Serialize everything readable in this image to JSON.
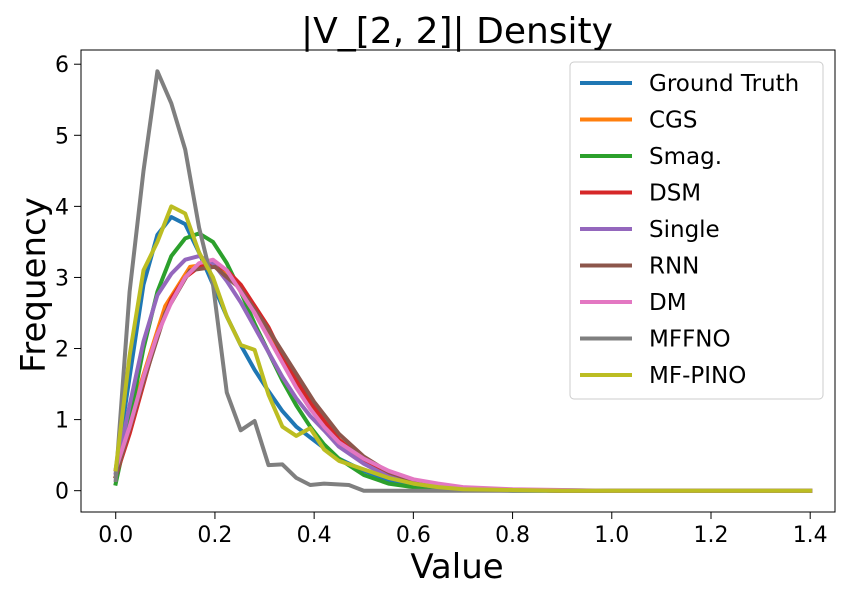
{
  "chart_data": {
    "type": "line",
    "title": "|V_[2, 2]| Density",
    "xlabel": "Value",
    "ylabel": "Frequency",
    "xlim": [
      -0.07,
      1.45
    ],
    "ylim": [
      -0.3,
      6.2
    ],
    "xticks": [
      0.0,
      0.2,
      0.4,
      0.6,
      0.8,
      1.0,
      1.2,
      1.4
    ],
    "xtick_labels": [
      "0.0",
      "0.2",
      "0.4",
      "0.6",
      "0.8",
      "1.0",
      "1.2",
      "1.4"
    ],
    "yticks": [
      0,
      1,
      2,
      3,
      4,
      5,
      6
    ],
    "ytick_labels": [
      "0",
      "1",
      "2",
      "3",
      "4",
      "5",
      "6"
    ],
    "legend_position": "top-right",
    "series": [
      {
        "name": "Ground Truth",
        "color": "#1f77b4",
        "x": [
          0,
          0.028,
          0.056,
          0.084,
          0.112,
          0.14,
          0.168,
          0.196,
          0.224,
          0.252,
          0.28,
          0.308,
          0.336,
          0.364,
          0.392,
          0.42,
          0.45,
          0.5,
          0.55,
          0.6,
          0.65,
          0.7,
          0.8,
          0.9,
          1.0,
          1.2,
          1.4
        ],
        "y": [
          0.3,
          1.6,
          2.9,
          3.6,
          3.85,
          3.75,
          3.35,
          2.9,
          2.45,
          2.05,
          1.7,
          1.4,
          1.12,
          0.9,
          0.75,
          0.6,
          0.45,
          0.28,
          0.15,
          0.08,
          0.04,
          0.02,
          0.01,
          0.005,
          0.0,
          0.0,
          0.0
        ]
      },
      {
        "name": "CGS",
        "color": "#ff7f0e",
        "x": [
          0,
          0.05,
          0.1,
          0.15,
          0.2,
          0.25,
          0.3,
          0.35,
          0.4,
          0.45,
          0.5,
          0.55,
          0.6,
          0.65,
          0.7,
          0.8,
          0.9,
          1.0,
          1.2,
          1.4
        ],
        "y": [
          0.2,
          1.5,
          2.6,
          3.15,
          3.2,
          2.85,
          2.3,
          1.7,
          1.15,
          0.72,
          0.42,
          0.24,
          0.13,
          0.07,
          0.04,
          0.01,
          0.0,
          0.0,
          0.0,
          0.0
        ]
      },
      {
        "name": "Smag.",
        "color": "#2ca02c",
        "x": [
          0,
          0.028,
          0.056,
          0.084,
          0.112,
          0.14,
          0.168,
          0.196,
          0.224,
          0.252,
          0.28,
          0.308,
          0.336,
          0.364,
          0.392,
          0.42,
          0.45,
          0.5,
          0.55,
          0.6,
          0.65,
          0.7,
          0.8,
          0.9,
          1.0,
          1.2,
          1.4
        ],
        "y": [
          0.1,
          1.0,
          2.0,
          2.8,
          3.3,
          3.55,
          3.62,
          3.5,
          3.2,
          2.8,
          2.35,
          1.95,
          1.55,
          1.2,
          0.9,
          0.65,
          0.45,
          0.22,
          0.1,
          0.05,
          0.02,
          0.01,
          0.0,
          0.0,
          0.0,
          0.0,
          0.0
        ]
      },
      {
        "name": "DSM",
        "color": "#d62728",
        "x": [
          0,
          0.028,
          0.056,
          0.084,
          0.112,
          0.14,
          0.168,
          0.196,
          0.224,
          0.252,
          0.28,
          0.308,
          0.336,
          0.364,
          0.392,
          0.42,
          0.45,
          0.5,
          0.55,
          0.6,
          0.65,
          0.7,
          0.8,
          0.9,
          1.0,
          1.2,
          1.4
        ],
        "y": [
          0.2,
          0.8,
          1.5,
          2.2,
          2.7,
          3.0,
          3.15,
          3.2,
          3.1,
          2.9,
          2.6,
          2.3,
          1.9,
          1.55,
          1.25,
          0.98,
          0.72,
          0.42,
          0.22,
          0.11,
          0.06,
          0.03,
          0.01,
          0.0,
          0.0,
          0.0,
          0.0
        ]
      },
      {
        "name": "Single",
        "color": "#9467bd",
        "x": [
          0,
          0.028,
          0.056,
          0.084,
          0.112,
          0.14,
          0.168,
          0.196,
          0.224,
          0.252,
          0.28,
          0.308,
          0.336,
          0.364,
          0.392,
          0.42,
          0.45,
          0.5,
          0.55,
          0.6,
          0.65,
          0.7,
          0.8,
          0.9,
          1.0,
          1.2,
          1.4
        ],
        "y": [
          0.25,
          1.2,
          2.1,
          2.75,
          3.05,
          3.25,
          3.3,
          3.2,
          2.95,
          2.65,
          2.3,
          1.95,
          1.6,
          1.3,
          1.05,
          0.85,
          0.62,
          0.38,
          0.2,
          0.1,
          0.05,
          0.025,
          0.01,
          0.0,
          0.0,
          0.0,
          0.0
        ]
      },
      {
        "name": "RNN",
        "color": "#8c564b",
        "x": [
          0,
          0.05,
          0.1,
          0.15,
          0.2,
          0.25,
          0.3,
          0.35,
          0.4,
          0.45,
          0.5,
          0.55,
          0.6,
          0.65,
          0.7,
          0.8,
          0.9,
          1.0,
          1.2,
          1.4
        ],
        "y": [
          0.2,
          1.4,
          2.5,
          3.1,
          3.15,
          2.85,
          2.35,
          1.8,
          1.25,
          0.8,
          0.48,
          0.26,
          0.14,
          0.07,
          0.035,
          0.01,
          0.0,
          0.0,
          0.0,
          0.0
        ]
      },
      {
        "name": "DM",
        "color": "#e377c2",
        "x": [
          0,
          0.028,
          0.056,
          0.084,
          0.112,
          0.14,
          0.168,
          0.196,
          0.224,
          0.252,
          0.28,
          0.308,
          0.336,
          0.364,
          0.392,
          0.42,
          0.45,
          0.5,
          0.55,
          0.6,
          0.65,
          0.7,
          0.8,
          0.9,
          1.0,
          1.2,
          1.4
        ],
        "y": [
          0.3,
          0.9,
          1.6,
          2.2,
          2.65,
          3.0,
          3.2,
          3.25,
          3.1,
          2.8,
          2.5,
          2.15,
          1.8,
          1.45,
          1.15,
          0.9,
          0.68,
          0.45,
          0.28,
          0.16,
          0.1,
          0.05,
          0.02,
          0.01,
          0.0,
          0.0,
          0.0
        ]
      },
      {
        "name": "MFFNO",
        "color": "#7f7f7f",
        "x": [
          0,
          0.028,
          0.056,
          0.084,
          0.112,
          0.14,
          0.168,
          0.196,
          0.224,
          0.252,
          0.28,
          0.308,
          0.336,
          0.364,
          0.392,
          0.42,
          0.47,
          0.5,
          0.55,
          0.6,
          0.7,
          0.8,
          1.0,
          1.2,
          1.4
        ],
        "y": [
          0.15,
          2.8,
          4.5,
          5.9,
          5.45,
          4.8,
          3.7,
          2.9,
          1.38,
          0.85,
          0.98,
          0.36,
          0.37,
          0.18,
          0.08,
          0.1,
          0.08,
          0.0,
          0.0,
          0.0,
          0.0,
          0.0,
          0.0,
          0.0,
          0.0
        ]
      },
      {
        "name": "MF-PINO",
        "color": "#bcbd22",
        "x": [
          0,
          0.028,
          0.056,
          0.084,
          0.112,
          0.14,
          0.168,
          0.196,
          0.224,
          0.252,
          0.28,
          0.308,
          0.336,
          0.364,
          0.392,
          0.42,
          0.45,
          0.5,
          0.55,
          0.6,
          0.65,
          0.7,
          0.8,
          0.9,
          1.0,
          1.2,
          1.4
        ],
        "y": [
          0.3,
          1.9,
          3.1,
          3.5,
          4.0,
          3.9,
          3.35,
          3.0,
          2.45,
          2.05,
          1.98,
          1.35,
          0.9,
          0.77,
          0.88,
          0.58,
          0.42,
          0.3,
          0.18,
          0.1,
          0.05,
          0.02,
          0.01,
          0.0,
          0.0,
          0.0,
          0.0
        ]
      }
    ]
  }
}
